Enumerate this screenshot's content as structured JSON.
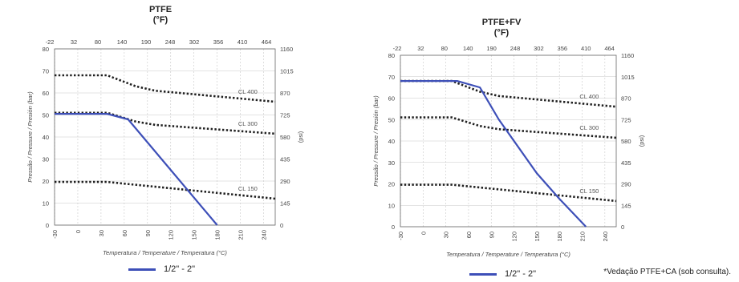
{
  "chart_data": [
    {
      "type": "line",
      "title": "PTFE",
      "subtitle": "(°F)",
      "xlabel": "Temperatura / Temperature / Temperatura (°C)",
      "ylabel": "Pressão / Pressure / Presión (bar)",
      "ylabel_right": "(psi)",
      "x_ticks": [
        -30,
        0,
        30,
        60,
        90,
        120,
        150,
        180,
        210,
        240
      ],
      "x_top_ticks": [
        "-22",
        "32",
        "80",
        "140",
        "190",
        "248",
        "302",
        "356",
        "410",
        "464"
      ],
      "y_ticks": [
        0,
        10,
        20,
        30,
        40,
        50,
        60,
        70,
        80
      ],
      "y_right_ticks": [
        "0",
        "145",
        "290",
        "435",
        "580",
        "725",
        "870",
        "1015",
        "1160"
      ],
      "xlim": [
        -30,
        255
      ],
      "ylim": [
        0,
        80
      ],
      "grid": true,
      "dotted_series": [
        {
          "label": "CL 400",
          "x": [
            -30,
            38,
            75,
            100,
            255
          ],
          "y": [
            68,
            68,
            63,
            61,
            56
          ]
        },
        {
          "label": "CL 300",
          "x": [
            -30,
            38,
            75,
            100,
            255
          ],
          "y": [
            51,
            51,
            47,
            45.5,
            41.5
          ]
        },
        {
          "label": "CL 150",
          "x": [
            -30,
            38,
            255
          ],
          "y": [
            19.6,
            19.6,
            12
          ]
        }
      ],
      "series": [
        {
          "name": "1/2\" - 2\"",
          "x": [
            -30,
            38,
            65,
            180
          ],
          "y": [
            50.5,
            50.5,
            48,
            0
          ]
        }
      ],
      "legend_position": "bottom-center"
    },
    {
      "type": "line",
      "title": "PTFE+FV",
      "subtitle": "(°F)",
      "xlabel": "Temperatura / Temperature / Temperatura (°C)",
      "ylabel": "Pressão / Pressure / Presión (bar)",
      "ylabel_right": "(psi)",
      "x_ticks": [
        -30,
        0,
        30,
        60,
        90,
        120,
        150,
        180,
        210,
        240
      ],
      "x_top_ticks": [
        "-22",
        "32",
        "80",
        "140",
        "190",
        "248",
        "302",
        "356",
        "410",
        "464"
      ],
      "y_ticks": [
        0,
        10,
        20,
        30,
        40,
        50,
        60,
        70,
        80
      ],
      "y_right_ticks": [
        "0",
        "145",
        "290",
        "435",
        "580",
        "725",
        "870",
        "1015",
        "1160"
      ],
      "xlim": [
        -30,
        255
      ],
      "ylim": [
        0,
        80
      ],
      "grid": true,
      "dotted_series": [
        {
          "label": "CL 400",
          "x": [
            -30,
            38,
            75,
            100,
            255
          ],
          "y": [
            68,
            68,
            63,
            61,
            56
          ]
        },
        {
          "label": "CL 300",
          "x": [
            -30,
            38,
            75,
            100,
            255
          ],
          "y": [
            51,
            51,
            47,
            45.5,
            41.5
          ]
        },
        {
          "label": "CL 150",
          "x": [
            -30,
            38,
            255
          ],
          "y": [
            19.6,
            19.6,
            12
          ]
        }
      ],
      "series": [
        {
          "name": "1/2\" - 2\"",
          "x": [
            -30,
            45,
            75,
            100,
            150,
            180,
            215
          ],
          "y": [
            68,
            68,
            65,
            50,
            25,
            13,
            0
          ]
        }
      ],
      "legend_position": "bottom-center"
    }
  ],
  "legend": {
    "label": "1/2\" - 2\""
  },
  "footnote": "*Vedação PTFE+CA (sob consulta).",
  "colors": {
    "curve": "#3d4fb8",
    "dotted": "#1f1f1f",
    "grid": "#c8c8c8",
    "axis": "#666666"
  }
}
